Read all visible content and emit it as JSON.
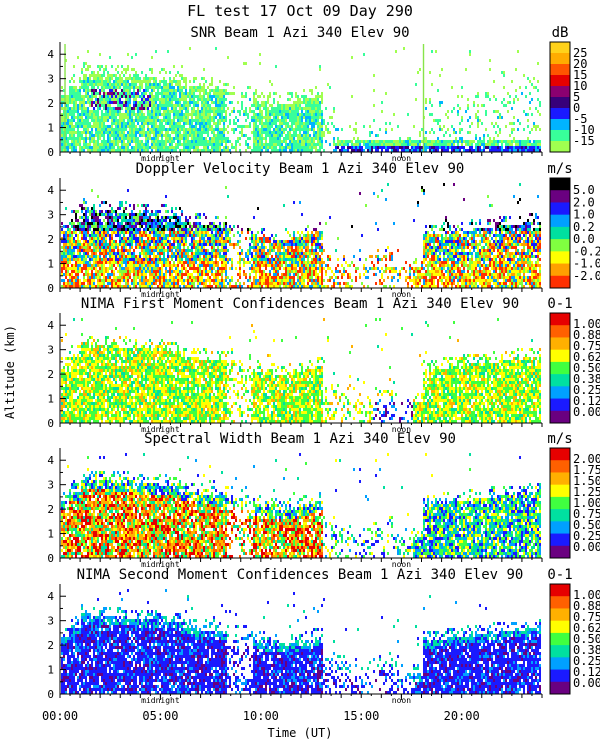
{
  "title": "FL test  17 Oct 09 Day 290",
  "ylabel": "Altitude (km)",
  "xlabel": "Time (UT)",
  "midnight_label": "midnight",
  "noon_label": "noon",
  "x_axis": {
    "range_hours": [
      0,
      24
    ],
    "tick_labels": [
      "00:00",
      "05:00",
      "10:00",
      "15:00",
      "20:00"
    ],
    "tick_hours": [
      0,
      5,
      10,
      15,
      20
    ],
    "midnight_hour": 5.0,
    "noon_hour": 17.0
  },
  "chart_data": [
    {
      "type": "heatmap",
      "title": "SNR Beam 1 Azi 340 Elev 90",
      "unit": "dB",
      "ylim": [
        0,
        4.5
      ],
      "yticks": [
        0,
        1,
        2,
        3,
        4
      ],
      "scale_labels": [
        "25",
        "20",
        "15",
        "10",
        "5",
        "0",
        "-5",
        "-10",
        "-15"
      ],
      "scale_colors": [
        "#ffd21a",
        "#ffac00",
        "#ff5500",
        "#e60000",
        "#8a0070",
        "#37007a",
        "#1a1aff",
        "#00b4ff",
        "#38ff9a",
        "#a0ff50"
      ]
    },
    {
      "type": "heatmap",
      "title": "Doppler Velocity Beam 1 Azi 340 Elev 90",
      "unit": "m/s",
      "ylim": [
        0,
        4.5
      ],
      "yticks": [
        0,
        1,
        2,
        3,
        4
      ],
      "scale_labels": [
        "5.0",
        "2.0",
        "1.0",
        "0.2",
        "0.0",
        "-0.2",
        "-1.0",
        "-2.0"
      ],
      "scale_colors": [
        "#000000",
        "#6a0080",
        "#1a1aff",
        "#00a0ff",
        "#00e0a0",
        "#80ff40",
        "#ffff00",
        "#ffa000",
        "#ff3000"
      ]
    },
    {
      "type": "heatmap",
      "title": "NIMA First Moment Confidences Beam 1 Azi 340 Elev 90",
      "unit": "0-1",
      "ylim": [
        0,
        4.5
      ],
      "yticks": [
        0,
        1,
        2,
        3,
        4
      ],
      "scale_labels": [
        "1.00",
        "0.88",
        "0.75",
        "0.62",
        "0.50",
        "0.38",
        "0.25",
        "0.12",
        "0.00"
      ],
      "scale_colors": [
        "#e60000",
        "#ff6000",
        "#ffb000",
        "#ffff00",
        "#40ff40",
        "#00e0a0",
        "#00a0ff",
        "#1a1aff",
        "#6a0080"
      ]
    },
    {
      "type": "heatmap",
      "title": "Spectral Width Beam 1 Azi 340 Elev 90",
      "unit": "m/s",
      "ylim": [
        0,
        4.5
      ],
      "yticks": [
        0,
        1,
        2,
        3,
        4
      ],
      "scale_labels": [
        "2.00",
        "1.75",
        "1.50",
        "1.25",
        "1.00",
        "0.75",
        "0.50",
        "0.25",
        "0.00"
      ],
      "scale_colors": [
        "#e60000",
        "#ff6000",
        "#ffb000",
        "#ffff00",
        "#40ff40",
        "#00e0a0",
        "#00a0ff",
        "#1a1aff",
        "#6a0080"
      ]
    },
    {
      "type": "heatmap",
      "title": "NIMA Second Moment Confidences Beam 1 Azi 340 Elev 90",
      "unit": "0-1",
      "ylim": [
        0,
        4.5
      ],
      "yticks": [
        0,
        1,
        2,
        3,
        4
      ],
      "scale_labels": [
        "1.00",
        "0.88",
        "0.75",
        "0.62",
        "0.50",
        "0.38",
        "0.25",
        "0.12",
        "0.00"
      ],
      "scale_colors": [
        "#e60000",
        "#ff6000",
        "#ffb000",
        "#ffff00",
        "#40ff40",
        "#00e0a0",
        "#00a0ff",
        "#1a1aff",
        "#6a0080"
      ]
    }
  ]
}
